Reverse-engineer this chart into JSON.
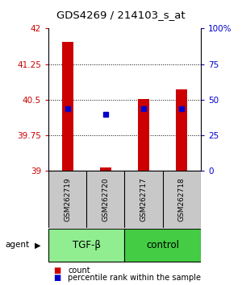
{
  "title": "GDS4269 / 214103_s_at",
  "samples": [
    "GSM262719",
    "GSM262720",
    "GSM262717",
    "GSM262718"
  ],
  "bar_bottom": 39.0,
  "bar_tops": [
    41.72,
    39.08,
    40.51,
    40.72
  ],
  "percentile_values": [
    40.31,
    40.19,
    40.31,
    40.31
  ],
  "ylim_left": [
    39.0,
    42.0
  ],
  "ylim_right": [
    0,
    100
  ],
  "yticks_left": [
    39,
    39.75,
    40.5,
    41.25,
    42
  ],
  "yticks_right": [
    0,
    25,
    50,
    75,
    100
  ],
  "bar_color": "#CC0000",
  "pct_color": "#0000CC",
  "left_tick_color": "#CC0000",
  "right_tick_color": "#0000CC",
  "tgf_color": "#90EE90",
  "ctrl_color": "#44CC44",
  "sample_box_color": "#C8C8C8",
  "agent_label": "agent",
  "legend_count_label": "count",
  "legend_pct_label": "percentile rank within the sample",
  "bar_width": 0.3
}
